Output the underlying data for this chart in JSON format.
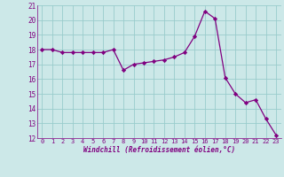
{
  "x": [
    0,
    1,
    2,
    3,
    4,
    5,
    6,
    7,
    8,
    9,
    10,
    11,
    12,
    13,
    14,
    15,
    16,
    17,
    18,
    19,
    20,
    21,
    22,
    23
  ],
  "y": [
    18.0,
    18.0,
    17.8,
    17.8,
    17.8,
    17.8,
    17.8,
    18.0,
    16.6,
    17.0,
    17.1,
    17.2,
    17.3,
    17.5,
    17.8,
    18.9,
    20.6,
    20.1,
    16.1,
    15.0,
    14.4,
    14.6,
    13.3,
    12.2
  ],
  "line_color": "#800080",
  "marker": "D",
  "marker_size": 2.2,
  "bg_color": "#cce8e8",
  "grid_color": "#99cccc",
  "xlabel": "Windchill (Refroidissement éolien,°C)",
  "tick_color": "#800080",
  "ylim": [
    12,
    21
  ],
  "xlim_min": -0.5,
  "xlim_max": 23.5,
  "yticks": [
    12,
    13,
    14,
    15,
    16,
    17,
    18,
    19,
    20,
    21
  ],
  "xticks": [
    0,
    1,
    2,
    3,
    4,
    5,
    6,
    7,
    8,
    9,
    10,
    11,
    12,
    13,
    14,
    15,
    16,
    17,
    18,
    19,
    20,
    21,
    22,
    23
  ]
}
